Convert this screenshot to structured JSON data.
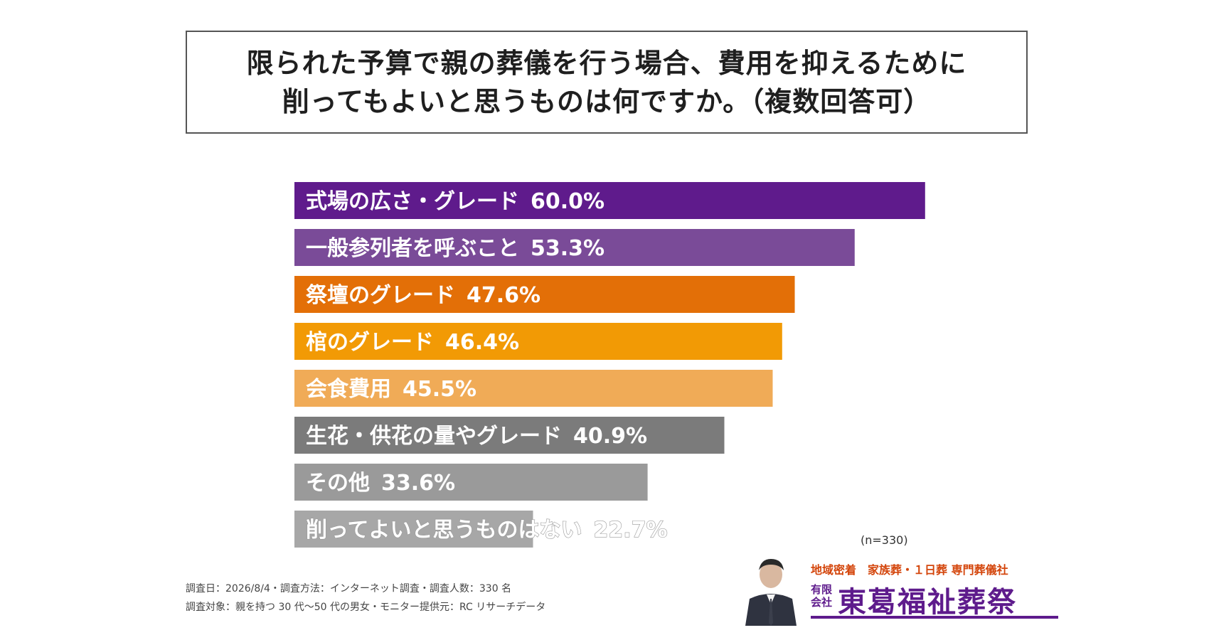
{
  "title": {
    "line1": "限られた予算で親の葬儀を行う場合、費用を抑えるために",
    "line2": "削ってもよいと思うものは何ですか。（複数回答可）"
  },
  "chart_data": {
    "type": "bar",
    "orientation": "horizontal",
    "unit": "%",
    "categories": [
      "式場の広さ・グレード",
      "一般参列者を呼ぶこと",
      "祭壇のグレード",
      "棺のグレード",
      "会食費用",
      "生花・供花の量やグレード",
      "その他",
      "削ってよいと思うものはない"
    ],
    "values": [
      60.0,
      53.3,
      47.6,
      46.4,
      45.5,
      40.9,
      33.6,
      22.7
    ],
    "value_labels": [
      "60.0%",
      "53.3%",
      "47.6%",
      "46.4%",
      "45.5%",
      "40.9%",
      "33.6%",
      "22.7%"
    ],
    "colors": [
      "#5f1b8c",
      "#7a4b98",
      "#e36f07",
      "#f29a05",
      "#f0ab57",
      "#7b7b7b",
      "#9a9a9a",
      "#a7a7a7"
    ],
    "grid": false,
    "legend": "none"
  },
  "sample_size": "(n=330)",
  "notes": {
    "line1": "調査日：2026/8/4・調査方法：インターネット調査・調査人数：330 名",
    "line2": "調査対象：親を持つ 30 代〜50 代の男女・モニター提供元：RC リサーチデータ"
  },
  "brand": {
    "tagline": "地域密着　家族葬・１日葬 専門葬儀社",
    "prefix": "有限会社",
    "name": "東葛福祉葬祭",
    "color": "#5e1b8c",
    "tagline_color": "#d4460c"
  }
}
